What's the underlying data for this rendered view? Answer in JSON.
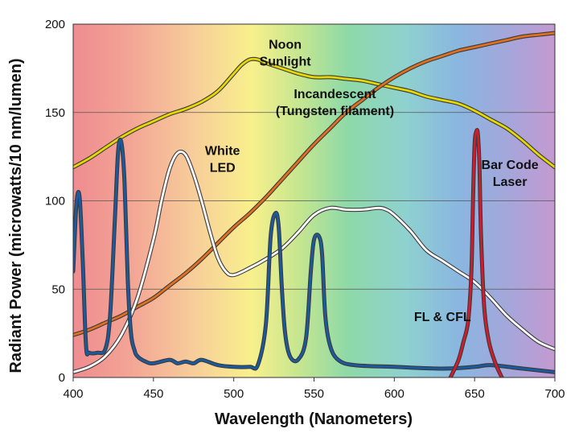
{
  "chart_data": {
    "type": "line",
    "xlabel": "Wavelength (Nanometers)",
    "ylabel": "Radiant Power (microwatts/10 nm/lumen)",
    "xlim": [
      400,
      700
    ],
    "ylim": [
      0,
      200
    ],
    "x_ticks": [
      "400",
      "450",
      "500",
      "550",
      "600",
      "650",
      "700"
    ],
    "y_ticks": [
      "0",
      "50",
      "100",
      "150",
      "200"
    ],
    "grid": "horizontal",
    "background": "visible-spectrum gradient (red at 400 nm through violet at 700 nm)",
    "annotations": [
      {
        "lines": [
          "Noon",
          "Sunlight"
        ],
        "x": 532,
        "y": 186
      },
      {
        "lines": [
          "Incandescent",
          "(Tungsten filament)"
        ],
        "x": 563,
        "y": 158
      },
      {
        "lines": [
          "White",
          "LED"
        ],
        "x": 493,
        "y": 126
      },
      {
        "lines": [
          "Bar Code",
          "Laser"
        ],
        "x": 672,
        "y": 118
      },
      {
        "lines": [
          "FL & CFL"
        ],
        "x": 630,
        "y": 32
      }
    ],
    "series": [
      {
        "name": "Noon Sunlight",
        "color": "#e6d800",
        "x": [
          400,
          410,
          420,
          430,
          440,
          450,
          460,
          470,
          480,
          490,
          500,
          505,
          510,
          515,
          520,
          530,
          540,
          550,
          560,
          570,
          580,
          590,
          600,
          610,
          620,
          630,
          640,
          650,
          660,
          670,
          680,
          690,
          700
        ],
        "y": [
          119,
          124,
          130,
          136,
          141,
          145,
          149,
          152,
          156,
          162,
          172,
          177,
          180,
          180,
          178,
          175,
          172,
          170,
          170,
          169,
          168,
          166,
          164,
          162,
          159,
          157,
          155,
          151,
          146,
          141,
          134,
          126,
          119
        ]
      },
      {
        "name": "Incandescent (Tungsten filament)",
        "color": "#e07020",
        "x": [
          400,
          410,
          420,
          430,
          440,
          450,
          460,
          470,
          480,
          490,
          500,
          510,
          520,
          530,
          540,
          550,
          560,
          570,
          580,
          590,
          600,
          610,
          620,
          630,
          640,
          650,
          660,
          670,
          680,
          690,
          700
        ],
        "y": [
          24,
          27,
          31,
          35,
          40,
          45,
          52,
          59,
          67,
          76,
          85,
          93,
          102,
          112,
          122,
          132,
          141,
          150,
          157,
          164,
          170,
          175,
          179,
          182,
          185,
          187,
          189,
          191,
          193,
          194,
          195
        ]
      },
      {
        "name": "White LED",
        "color": "#ffffff",
        "x": [
          400,
          410,
          420,
          430,
          440,
          450,
          455,
          460,
          465,
          470,
          475,
          480,
          485,
          490,
          495,
          500,
          510,
          520,
          530,
          540,
          550,
          560,
          570,
          580,
          590,
          595,
          600,
          610,
          620,
          630,
          640,
          650,
          660,
          670,
          680,
          690,
          700
        ],
        "y": [
          3,
          6,
          12,
          24,
          45,
          78,
          100,
          118,
          127,
          126,
          115,
          100,
          83,
          68,
          60,
          58,
          62,
          67,
          73,
          82,
          92,
          96,
          95,
          95,
          96,
          95,
          92,
          83,
          72,
          66,
          60,
          54,
          45,
          35,
          27,
          20,
          16
        ]
      },
      {
        "name": "FL & CFL",
        "color": "#1c5aa0",
        "x": [
          400,
          402,
          404,
          406,
          408,
          410,
          415,
          420,
          423,
          426,
          428,
          430,
          432,
          434,
          436,
          438,
          440,
          445,
          450,
          460,
          465,
          470,
          475,
          480,
          490,
          500,
          510,
          515,
          520,
          523,
          526,
          528,
          530,
          532,
          535,
          540,
          545,
          548,
          550,
          553,
          555,
          557,
          560,
          565,
          575,
          600,
          630,
          650,
          660,
          680,
          700
        ],
        "y": [
          60,
          98,
          102,
          65,
          18,
          14,
          14,
          16,
          35,
          90,
          128,
          133,
          110,
          55,
          25,
          16,
          12,
          9,
          8,
          10,
          8,
          9,
          8,
          10,
          7,
          6,
          6,
          7,
          30,
          80,
          93,
          85,
          50,
          25,
          12,
          10,
          22,
          60,
          78,
          80,
          70,
          35,
          18,
          10,
          7,
          6,
          5,
          6,
          7,
          5,
          3
        ]
      },
      {
        "name": "Bar Code Laser",
        "color": "#d01c2c",
        "x": [
          635,
          640,
          643,
          646,
          648,
          649,
          650,
          651,
          652,
          653,
          654,
          656,
          659,
          663,
          667
        ],
        "y": [
          0,
          10,
          20,
          32,
          60,
          100,
          132,
          139,
          138,
          120,
          80,
          40,
          20,
          8,
          0
        ]
      }
    ]
  }
}
